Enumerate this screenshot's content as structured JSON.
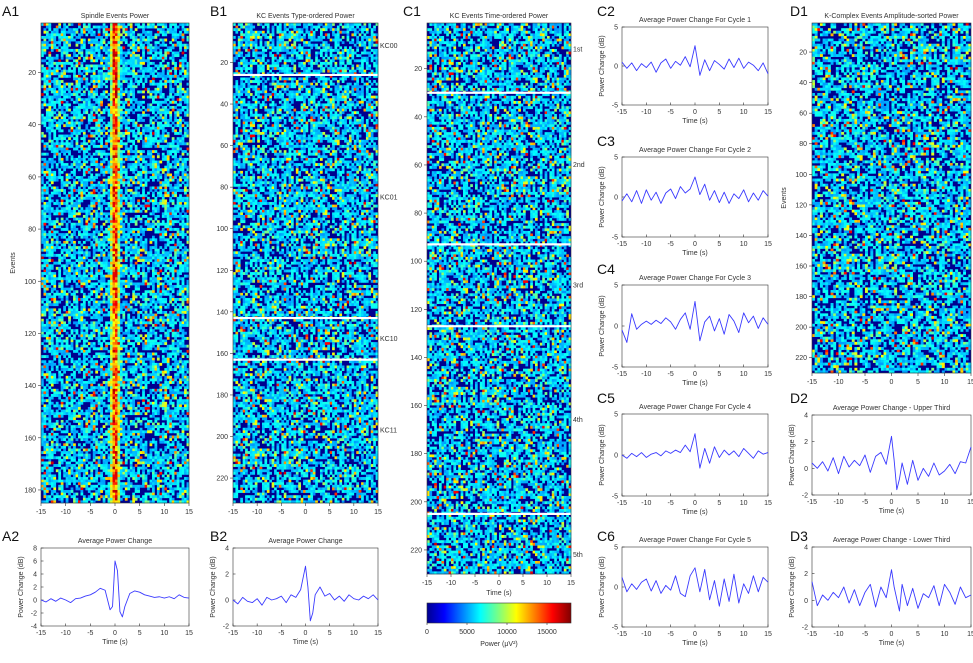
{
  "colors": {
    "jet_low": "#00008f",
    "jet_high": "#800000",
    "trace": "#3a3aff",
    "divider": "#ffffff"
  },
  "chart_data": [
    {
      "id": "A1",
      "type": "heatmap",
      "title": "Spindle Events Power",
      "xlabel": "",
      "ylabel": "Events",
      "xlim": [
        -15,
        15
      ],
      "ylim": [
        1,
        185
      ],
      "xticks": [
        -15,
        -10,
        -5,
        0,
        5,
        10,
        15
      ],
      "yticks": [
        20,
        40,
        60,
        80,
        100,
        120,
        140,
        160,
        180
      ],
      "dividers": [],
      "groups": [],
      "center_peak": true
    },
    {
      "id": "B1",
      "type": "heatmap",
      "title": "KC Events Type-ordered Power",
      "xlabel": "",
      "ylabel": "",
      "xlim": [
        -15,
        15
      ],
      "ylim": [
        1,
        232
      ],
      "xticks": [
        -15,
        -10,
        -5,
        0,
        5,
        10,
        15
      ],
      "yticks": [
        20,
        40,
        60,
        80,
        100,
        120,
        140,
        160,
        180,
        200,
        220
      ],
      "dividers": [
        26,
        143,
        163
      ],
      "groups": [
        {
          "label": "KC00",
          "y": 12
        },
        {
          "label": "KC01",
          "y": 85
        },
        {
          "label": "KC10",
          "y": 153
        },
        {
          "label": "KC11",
          "y": 197
        }
      ],
      "center_peak": false
    },
    {
      "id": "C1",
      "type": "heatmap",
      "title": "KC Events Time-ordered Power",
      "xlabel": "Time (s)",
      "ylabel": "",
      "xlim": [
        -15,
        15
      ],
      "ylim": [
        1,
        230
      ],
      "xticks": [
        -15,
        -10,
        -5,
        0,
        5,
        10,
        15
      ],
      "yticks": [
        20,
        40,
        60,
        80,
        100,
        120,
        140,
        160,
        180,
        200,
        220
      ],
      "dividers": [
        30,
        93,
        127,
        205
      ],
      "groups": [
        {
          "label": "1st",
          "y": 12
        },
        {
          "label": "2nd",
          "y": 60
        },
        {
          "label": "3rd",
          "y": 110
        },
        {
          "label": "4th",
          "y": 166
        },
        {
          "label": "5th",
          "y": 222
        }
      ],
      "colorbar": {
        "ticks": [
          0,
          5000,
          10000,
          15000
        ],
        "label": "Power (μV²)",
        "max": 18000
      },
      "center_peak": false
    },
    {
      "id": "D1",
      "type": "heatmap",
      "title": "K-Complex Events Amplitude-sorted Power",
      "xlabel": "",
      "ylabel": "Events",
      "xlim": [
        -15,
        15
      ],
      "ylim": [
        1,
        230
      ],
      "xticks": [
        -15,
        -10,
        -5,
        0,
        5,
        10,
        15
      ],
      "yticks": [
        20,
        40,
        60,
        80,
        100,
        120,
        140,
        160,
        180,
        200,
        220
      ],
      "dividers": [],
      "groups": [],
      "center_peak": false
    },
    {
      "id": "A2",
      "type": "line",
      "title": "Average Power Change",
      "xlabel": "Time (s)",
      "ylabel": "Power Change (dB)",
      "xlim": [
        -15,
        15
      ],
      "ylim": [
        -4,
        8
      ],
      "xticks": [
        -15,
        -10,
        -5,
        0,
        5,
        10,
        15
      ],
      "yticks": [
        -4,
        -2,
        0,
        2,
        4,
        6,
        8
      ],
      "x": [
        -15,
        -14,
        -13,
        -12,
        -11,
        -10,
        -9,
        -8,
        -7,
        -6,
        -5,
        -4,
        -3,
        -2,
        -1,
        -0.5,
        0,
        0.5,
        1,
        1.5,
        2,
        3,
        4,
        5,
        6,
        7,
        8,
        9,
        10,
        11,
        12,
        13,
        14,
        15
      ],
      "y": [
        0,
        -0.3,
        0.2,
        -0.2,
        0.3,
        0,
        -0.4,
        0.2,
        0.3,
        0.6,
        0.8,
        1.2,
        1.8,
        1.5,
        -1.5,
        -1.0,
        6.0,
        4.5,
        -1.8,
        -2.6,
        -1.0,
        1.0,
        1.4,
        1.2,
        0.8,
        0.6,
        0.4,
        0.5,
        0.3,
        0.5,
        0.2,
        0.8,
        0.4,
        0.3
      ]
    },
    {
      "id": "B2",
      "type": "line",
      "title": "Average Power Change",
      "xlabel": "Time (s)",
      "ylabel": "Power Change (dB)",
      "xlim": [
        -15,
        15
      ],
      "ylim": [
        -2,
        4
      ],
      "xticks": [
        -15,
        -10,
        -5,
        0,
        5,
        10,
        15
      ],
      "yticks": [
        -2,
        0,
        2,
        4
      ],
      "x": [
        -15,
        -14,
        -13,
        -12,
        -11,
        -10,
        -9,
        -8,
        -7,
        -6,
        -5,
        -4,
        -3,
        -2,
        -1,
        0,
        0.5,
        1,
        1.5,
        2,
        3,
        4,
        5,
        6,
        7,
        8,
        9,
        10,
        11,
        12,
        13,
        14,
        15
      ],
      "y": [
        0,
        -0.3,
        0.2,
        -0.1,
        -0.2,
        0.1,
        -0.4,
        0.2,
        0,
        0.1,
        0.3,
        -0.2,
        0.4,
        0.2,
        0.8,
        2.6,
        1.0,
        -1.6,
        -1.0,
        0.4,
        1.0,
        0.3,
        0.5,
        0,
        0.3,
        -0.1,
        0.4,
        0.1,
        0,
        0.3,
        0.1,
        0.4,
        0
      ]
    },
    {
      "id": "C2",
      "type": "line",
      "title": "Average Power Change For Cycle 1",
      "xlabel": "Time (s)",
      "ylabel": "Power Change (dB)",
      "xlim": [
        -15,
        15
      ],
      "ylim": [
        -5,
        5
      ],
      "xticks": [
        -15,
        -10,
        -5,
        0,
        5,
        10,
        15
      ],
      "yticks": [
        -5,
        0,
        5
      ],
      "x": [
        -15,
        -14,
        -13,
        -12,
        -11,
        -10,
        -9,
        -8,
        -7,
        -6,
        -5,
        -4,
        -3,
        -2,
        -1,
        0,
        1,
        2,
        3,
        4,
        5,
        6,
        7,
        8,
        9,
        10,
        11,
        12,
        13,
        14,
        15
      ],
      "y": [
        0.5,
        -0.3,
        0.4,
        -0.6,
        0.3,
        -0.2,
        0.5,
        -0.8,
        0.4,
        0.9,
        -0.3,
        0.6,
        0.1,
        1.2,
        -0.1,
        2.6,
        -1.2,
        0.8,
        -0.6,
        0.7,
        0.2,
        -0.4,
        0.9,
        -0.2,
        1.0,
        -0.3,
        0.5,
        0.1,
        -0.6,
        0.4,
        -1.0
      ]
    },
    {
      "id": "C3",
      "type": "line",
      "title": "Average Power Change For Cycle 2",
      "xlabel": "Time (s)",
      "ylabel": "Power Change (dB)",
      "xlim": [
        -15,
        15
      ],
      "ylim": [
        -5,
        5
      ],
      "xticks": [
        -15,
        -10,
        -5,
        0,
        5,
        10,
        15
      ],
      "yticks": [
        -5,
        0,
        5
      ],
      "x": [
        -15,
        -14,
        -13,
        -12,
        -11,
        -10,
        -9,
        -8,
        -7,
        -6,
        -5,
        -4,
        -3,
        -2,
        -1,
        0,
        1,
        2,
        3,
        4,
        5,
        6,
        7,
        8,
        9,
        10,
        11,
        12,
        13,
        14,
        15
      ],
      "y": [
        -0.5,
        0.4,
        -0.6,
        0.8,
        -0.8,
        0.9,
        -0.4,
        0.6,
        -0.8,
        0.5,
        1.0,
        -0.2,
        1.3,
        0.5,
        1.0,
        2.5,
        0.3,
        1.6,
        -0.4,
        0.8,
        -0.7,
        0.6,
        -0.8,
        0.4,
        -0.2,
        0.9,
        -0.6,
        0.5,
        -0.4,
        0.8,
        0.1
      ]
    },
    {
      "id": "C4",
      "type": "line",
      "title": "Average Power Change For Cycle 3",
      "xlabel": "Time (s)",
      "ylabel": "Power Change (dB)",
      "xlim": [
        -15,
        15
      ],
      "ylim": [
        -5,
        5
      ],
      "xticks": [
        -15,
        -10,
        -5,
        0,
        5,
        10,
        15
      ],
      "yticks": [
        -5,
        0,
        5
      ],
      "x": [
        -15,
        -14,
        -13,
        -12,
        -11,
        -10,
        -9,
        -8,
        -7,
        -6,
        -5,
        -4,
        -3,
        -2,
        -1,
        0,
        1,
        2,
        3,
        4,
        5,
        6,
        7,
        8,
        9,
        10,
        11,
        12,
        13,
        14,
        15
      ],
      "y": [
        -0.5,
        -2.0,
        1.5,
        -0.4,
        0.2,
        0.6,
        0.2,
        0.7,
        0.3,
        1.0,
        0.5,
        -0.4,
        0.8,
        1.6,
        -0.4,
        3.0,
        -1.8,
        0.5,
        1.2,
        -0.6,
        0.9,
        -1.0,
        1.4,
        0.6,
        -0.8,
        1.6,
        0.4,
        1.2,
        -0.3,
        1.0,
        0.2
      ]
    },
    {
      "id": "C5",
      "type": "line",
      "title": "Average Power Change For Cycle 4",
      "xlabel": "Time (s)",
      "ylabel": "Power Change (dB)",
      "xlim": [
        -15,
        15
      ],
      "ylim": [
        -5,
        5
      ],
      "xticks": [
        -15,
        -10,
        -5,
        0,
        5,
        10,
        15
      ],
      "yticks": [
        -5,
        0,
        5
      ],
      "x": [
        -15,
        -14,
        -13,
        -12,
        -11,
        -10,
        -9,
        -8,
        -7,
        -6,
        -5,
        -4,
        -3,
        -2,
        -1,
        0,
        1,
        2,
        3,
        4,
        5,
        6,
        7,
        8,
        9,
        10,
        11,
        12,
        13,
        14,
        15
      ],
      "y": [
        0,
        -0.4,
        0.2,
        -0.2,
        0.3,
        -0.3,
        0.1,
        0.3,
        -0.1,
        0.5,
        0.2,
        0.6,
        0.3,
        1.2,
        0.4,
        2.6,
        -1.6,
        0.8,
        -1.0,
        1.0,
        -0.3,
        0.6,
        0,
        0.5,
        -0.2,
        0.8,
        0.2,
        -0.4,
        0.5,
        0.1,
        0.3
      ]
    },
    {
      "id": "C6",
      "type": "line",
      "title": "Average Power Change For Cycle 5",
      "xlabel": "Time (s)",
      "ylabel": "Power Change (dB)",
      "xlim": [
        -15,
        15
      ],
      "ylim": [
        -5,
        5
      ],
      "xticks": [
        -15,
        -10,
        -5,
        0,
        5,
        10,
        15
      ],
      "yticks": [
        -5,
        0,
        5
      ],
      "x": [
        -15,
        -14,
        -13,
        -12,
        -11,
        -10,
        -9,
        -8,
        -7,
        -6,
        -5,
        -4,
        -3,
        -2,
        -1,
        0,
        1,
        2,
        3,
        4,
        5,
        6,
        7,
        8,
        9,
        10,
        11,
        12,
        13,
        14,
        15
      ],
      "y": [
        1.2,
        -0.6,
        0.4,
        -0.3,
        0.6,
        1.0,
        -0.5,
        0.8,
        -0.8,
        0.2,
        -0.4,
        1.4,
        -0.8,
        -1.2,
        1.4,
        2.4,
        -0.6,
        2.2,
        -1.6,
        0.8,
        -2.4,
        1.0,
        -1.8,
        1.6,
        -2.0,
        0.4,
        -0.8,
        1.4,
        -0.6,
        1.2,
        0.6
      ]
    },
    {
      "id": "D2",
      "type": "line",
      "title": "Average Power Change - Upper Third",
      "xlabel": "Time (s)",
      "ylabel": "Power Change (dB)",
      "xlim": [
        -15,
        15
      ],
      "ylim": [
        -2,
        4
      ],
      "xticks": [
        -15,
        -10,
        -5,
        0,
        5,
        10,
        15
      ],
      "yticks": [
        -2,
        0,
        2,
        4
      ],
      "x": [
        -15,
        -14,
        -13,
        -12,
        -11,
        -10,
        -9,
        -8,
        -7,
        -6,
        -5,
        -4,
        -3,
        -2,
        -1,
        0,
        0.5,
        1,
        1.5,
        2,
        3,
        4,
        5,
        6,
        7,
        8,
        9,
        10,
        11,
        12,
        13,
        14,
        15
      ],
      "y": [
        0.4,
        0,
        0.5,
        -0.2,
        0.8,
        -0.4,
        0.9,
        0.1,
        0.6,
        0.2,
        1.0,
        -0.3,
        0.9,
        1.2,
        0.3,
        2.4,
        0.6,
        -1.6,
        -0.8,
        0.4,
        -1.2,
        0.6,
        -0.9,
        0,
        -0.6,
        0.4,
        -0.5,
        -0.2,
        0.3,
        -0.4,
        0.5,
        0.4,
        1.6
      ]
    },
    {
      "id": "D3",
      "type": "line",
      "title": "Average Power Change - Lower Third",
      "xlabel": "Time (s)",
      "ylabel": "Power Change (dB)",
      "xlim": [
        -15,
        15
      ],
      "ylim": [
        -2,
        4
      ],
      "xticks": [
        -15,
        -10,
        -5,
        0,
        5,
        10,
        15
      ],
      "yticks": [
        -2,
        0,
        2,
        4
      ],
      "x": [
        -15,
        -14,
        -13,
        -12,
        -11,
        -10,
        -9,
        -8,
        -7,
        -6,
        -5,
        -4,
        -3,
        -2,
        -1,
        0,
        0.5,
        1,
        1.5,
        2,
        3,
        4,
        5,
        6,
        7,
        8,
        9,
        10,
        11,
        12,
        13,
        14,
        15
      ],
      "y": [
        1.4,
        -0.4,
        0.4,
        0,
        0.6,
        0.2,
        1.0,
        -0.2,
        0.8,
        -0.4,
        0.6,
        1.2,
        -0.5,
        1.0,
        0.2,
        2.3,
        1.0,
        0.1,
        -0.8,
        1.2,
        -0.4,
        0.9,
        -0.6,
        0.5,
        0.2,
        1.1,
        -0.4,
        1.2,
        0.6,
        -0.3,
        1.0,
        0.2,
        0.4
      ]
    }
  ]
}
